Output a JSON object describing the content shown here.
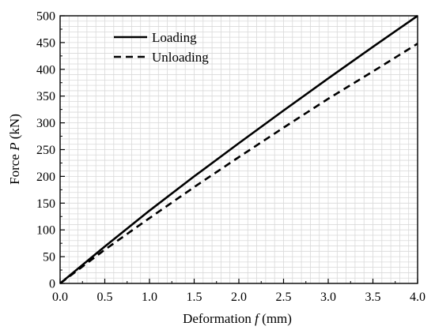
{
  "chart_data": {
    "type": "line",
    "xlabel_text": "Deformation",
    "xlabel_var": "f",
    "xlabel_unit": "(mm)",
    "ylabel_text": "Force",
    "ylabel_var": "P",
    "ylabel_unit": "(kN)",
    "xlim": [
      0,
      4.0
    ],
    "ylim": [
      0,
      500
    ],
    "xticks": [
      "0.0",
      "0.5",
      "1.0",
      "1.5",
      "2.0",
      "2.5",
      "3.0",
      "3.5",
      "4.0"
    ],
    "yticks": [
      "0",
      "50",
      "100",
      "150",
      "200",
      "250",
      "300",
      "350",
      "400",
      "450",
      "500"
    ],
    "grid": true,
    "legend_position": "top-left",
    "series": [
      {
        "name": "Loading",
        "style": "solid",
        "color": "#000000",
        "x": [
          0,
          0.5,
          1.0,
          1.5,
          2.0,
          2.5,
          3.0,
          3.5,
          4.0
        ],
        "y": [
          0,
          69,
          136,
          200,
          262,
          323,
          383,
          442,
          500
        ]
      },
      {
        "name": "Unloading",
        "style": "dashed",
        "color": "#000000",
        "x": [
          0,
          0.5,
          1.0,
          1.5,
          2.0,
          2.5,
          3.0,
          3.5,
          4.0
        ],
        "y": [
          0,
          63,
          122,
          180,
          236,
          291,
          345,
          396,
          448
        ]
      }
    ]
  }
}
